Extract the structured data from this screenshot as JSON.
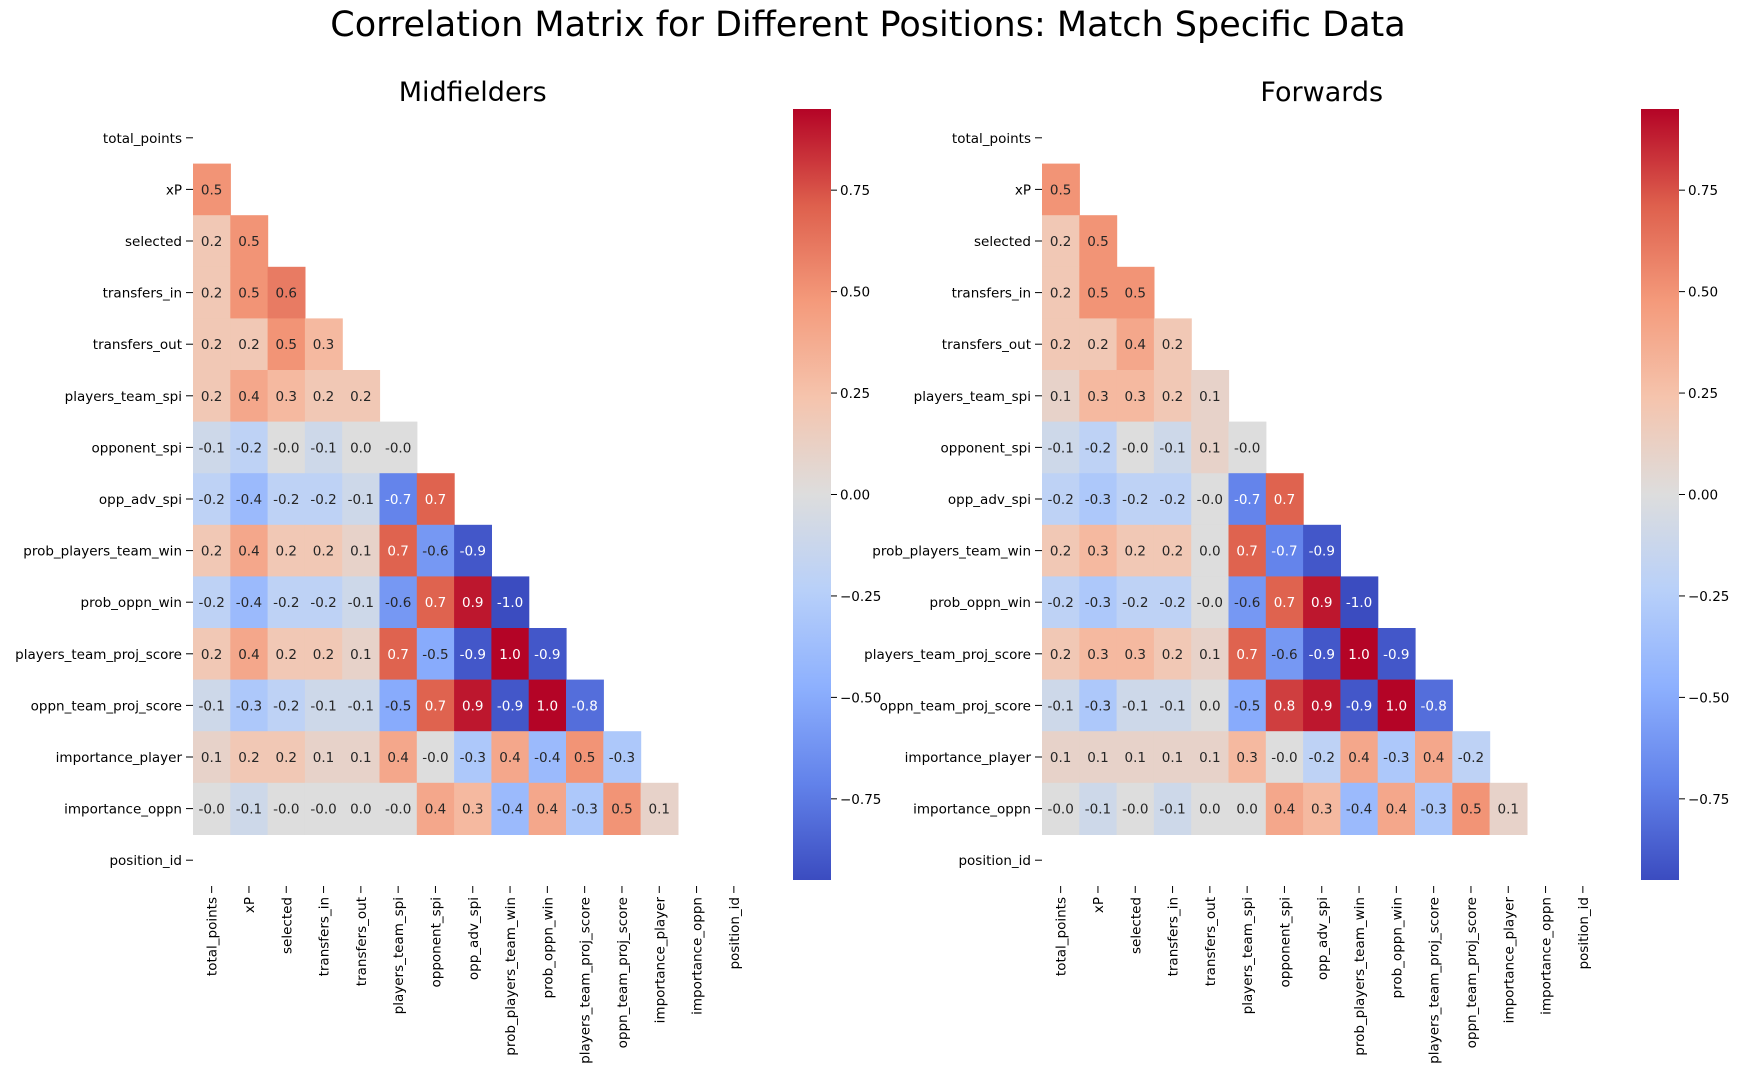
{
  "suptitle": "Correlation Matrix for Different Positions: Match Specific Data",
  "colors": {
    "negative": "#3b4cc0",
    "neutral": "#dddddd",
    "positive": "#b40426"
  },
  "chart_data": [
    {
      "type": "heatmap",
      "title": "Midfielders",
      "colormap": "coolwarm",
      "vlim": [
        -0.95,
        0.95
      ],
      "colorbar_ticks": [
        -0.75,
        -0.5,
        -0.25,
        0.0,
        0.25,
        0.5,
        0.75
      ],
      "colorbar_tick_labels": [
        "−0.75",
        "−0.50",
        "−0.25",
        "0.00",
        "0.25",
        "0.50",
        "0.75"
      ],
      "labels": [
        "total_points",
        "xP",
        "selected",
        "transfers_in",
        "transfers_out",
        "players_team_spi",
        "opponent_spi",
        "opp_adv_spi",
        "prob_players_team_win",
        "prob_oppn_win",
        "players_team_proj_score",
        "oppn_team_proj_score",
        "importance_player",
        "importance_oppn",
        "position_id"
      ],
      "values": [
        [],
        [
          0.5
        ],
        [
          0.2,
          0.5
        ],
        [
          0.2,
          0.5,
          0.6
        ],
        [
          0.2,
          0.2,
          0.5,
          0.3
        ],
        [
          0.2,
          0.4,
          0.3,
          0.2,
          0.2
        ],
        [
          -0.1,
          -0.2,
          -0.0,
          -0.1,
          0.0,
          -0.0
        ],
        [
          -0.2,
          -0.4,
          -0.2,
          -0.2,
          -0.1,
          -0.7,
          0.7
        ],
        [
          0.2,
          0.4,
          0.2,
          0.2,
          0.1,
          0.7,
          -0.6,
          -0.9
        ],
        [
          -0.2,
          -0.4,
          -0.2,
          -0.2,
          -0.1,
          -0.6,
          0.7,
          0.9,
          -1.0
        ],
        [
          0.2,
          0.4,
          0.2,
          0.2,
          0.1,
          0.7,
          -0.5,
          -0.9,
          1.0,
          -0.9
        ],
        [
          -0.1,
          -0.3,
          -0.2,
          -0.1,
          -0.1,
          -0.5,
          0.7,
          0.9,
          -0.9,
          1.0,
          -0.8
        ],
        [
          0.1,
          0.2,
          0.2,
          0.1,
          0.1,
          0.4,
          -0.0,
          -0.3,
          0.4,
          -0.4,
          0.5,
          -0.3
        ],
        [
          -0.0,
          -0.1,
          -0.0,
          -0.0,
          0.0,
          -0.0,
          0.4,
          0.3,
          -0.4,
          0.4,
          -0.3,
          0.5,
          0.1
        ],
        []
      ],
      "cell_text": [
        [],
        [
          "0.5"
        ],
        [
          "0.2",
          "0.5"
        ],
        [
          "0.2",
          "0.5",
          "0.6"
        ],
        [
          "0.2",
          "0.2",
          "0.5",
          "0.3"
        ],
        [
          "0.2",
          "0.4",
          "0.3",
          "0.2",
          "0.2"
        ],
        [
          "-0.1",
          "-0.2",
          "-0.0",
          "-0.1",
          "0.0",
          "-0.0"
        ],
        [
          "-0.2",
          "-0.4",
          "-0.2",
          "-0.2",
          "-0.1",
          "-0.7",
          "0.7"
        ],
        [
          "0.2",
          "0.4",
          "0.2",
          "0.2",
          "0.1",
          "0.7",
          "-0.6",
          "-0.9"
        ],
        [
          "-0.2",
          "-0.4",
          "-0.2",
          "-0.2",
          "-0.1",
          "-0.6",
          "0.7",
          "0.9",
          "-1.0"
        ],
        [
          "0.2",
          "0.4",
          "0.2",
          "0.2",
          "0.1",
          "0.7",
          "-0.5",
          "-0.9",
          "1.0",
          "-0.9"
        ],
        [
          "-0.1",
          "-0.3",
          "-0.2",
          "-0.1",
          "-0.1",
          "-0.5",
          "0.7",
          "0.9",
          "-0.9",
          "1.0",
          "-0.8"
        ],
        [
          "0.1",
          "0.2",
          "0.2",
          "0.1",
          "0.1",
          "0.4",
          "-0.0",
          "-0.3",
          "0.4",
          "-0.4",
          "0.5",
          "-0.3"
        ],
        [
          "-0.0",
          "-0.1",
          "-0.0",
          "-0.0",
          "0.0",
          "-0.0",
          "0.4",
          "0.3",
          "-0.4",
          "0.4",
          "-0.3",
          "0.5",
          "0.1"
        ],
        []
      ]
    },
    {
      "type": "heatmap",
      "title": "Forwards",
      "colormap": "coolwarm",
      "vlim": [
        -0.95,
        0.95
      ],
      "colorbar_ticks": [
        -0.75,
        -0.5,
        -0.25,
        0.0,
        0.25,
        0.5,
        0.75
      ],
      "colorbar_tick_labels": [
        "−0.75",
        "−0.50",
        "−0.25",
        "0.00",
        "0.25",
        "0.50",
        "0.75"
      ],
      "labels": [
        "total_points",
        "xP",
        "selected",
        "transfers_in",
        "transfers_out",
        "players_team_spi",
        "opponent_spi",
        "opp_adv_spi",
        "prob_players_team_win",
        "prob_oppn_win",
        "players_team_proj_score",
        "oppn_team_proj_score",
        "importance_player",
        "importance_oppn",
        "position_id"
      ],
      "values": [
        [],
        [
          0.5
        ],
        [
          0.2,
          0.5
        ],
        [
          0.2,
          0.5,
          0.5
        ],
        [
          0.2,
          0.2,
          0.4,
          0.2
        ],
        [
          0.1,
          0.3,
          0.3,
          0.2,
          0.1
        ],
        [
          -0.1,
          -0.2,
          -0.0,
          -0.1,
          0.1,
          -0.0
        ],
        [
          -0.2,
          -0.3,
          -0.2,
          -0.2,
          -0.0,
          -0.7,
          0.7
        ],
        [
          0.2,
          0.3,
          0.2,
          0.2,
          0.0,
          0.7,
          -0.7,
          -0.9
        ],
        [
          -0.2,
          -0.3,
          -0.2,
          -0.2,
          -0.0,
          -0.6,
          0.7,
          0.9,
          -1.0
        ],
        [
          0.2,
          0.3,
          0.3,
          0.2,
          0.1,
          0.7,
          -0.6,
          -0.9,
          1.0,
          -0.9
        ],
        [
          -0.1,
          -0.3,
          -0.1,
          -0.1,
          0.0,
          -0.5,
          0.8,
          0.9,
          -0.9,
          1.0,
          -0.8
        ],
        [
          0.1,
          0.1,
          0.1,
          0.1,
          0.1,
          0.3,
          -0.0,
          -0.2,
          0.4,
          -0.3,
          0.4,
          -0.2
        ],
        [
          -0.0,
          -0.1,
          -0.0,
          -0.1,
          0.0,
          0.0,
          0.4,
          0.3,
          -0.4,
          0.4,
          -0.3,
          0.5,
          0.1
        ],
        []
      ],
      "cell_text": [
        [],
        [
          "0.5"
        ],
        [
          "0.2",
          "0.5"
        ],
        [
          "0.2",
          "0.5",
          "0.5"
        ],
        [
          "0.2",
          "0.2",
          "0.4",
          "0.2"
        ],
        [
          "0.1",
          "0.3",
          "0.3",
          "0.2",
          "0.1"
        ],
        [
          "-0.1",
          "-0.2",
          "-0.0",
          "-0.1",
          "0.1",
          "-0.0"
        ],
        [
          "-0.2",
          "-0.3",
          "-0.2",
          "-0.2",
          "-0.0",
          "-0.7",
          "0.7"
        ],
        [
          "0.2",
          "0.3",
          "0.2",
          "0.2",
          "0.0",
          "0.7",
          "-0.7",
          "-0.9"
        ],
        [
          "-0.2",
          "-0.3",
          "-0.2",
          "-0.2",
          "-0.0",
          "-0.6",
          "0.7",
          "0.9",
          "-1.0"
        ],
        [
          "0.2",
          "0.3",
          "0.3",
          "0.2",
          "0.1",
          "0.7",
          "-0.6",
          "-0.9",
          "1.0",
          "-0.9"
        ],
        [
          "-0.1",
          "-0.3",
          "-0.1",
          "-0.1",
          "0.0",
          "-0.5",
          "0.8",
          "0.9",
          "-0.9",
          "1.0",
          "-0.8"
        ],
        [
          "0.1",
          "0.1",
          "0.1",
          "0.1",
          "0.1",
          "0.3",
          "-0.0",
          "-0.2",
          "0.4",
          "-0.3",
          "0.4",
          "-0.2"
        ],
        [
          "-0.0",
          "-0.1",
          "-0.0",
          "-0.1",
          "0.0",
          "0.0",
          "0.4",
          "0.3",
          "-0.4",
          "0.4",
          "-0.3",
          "0.5",
          "0.1"
        ],
        []
      ]
    }
  ]
}
